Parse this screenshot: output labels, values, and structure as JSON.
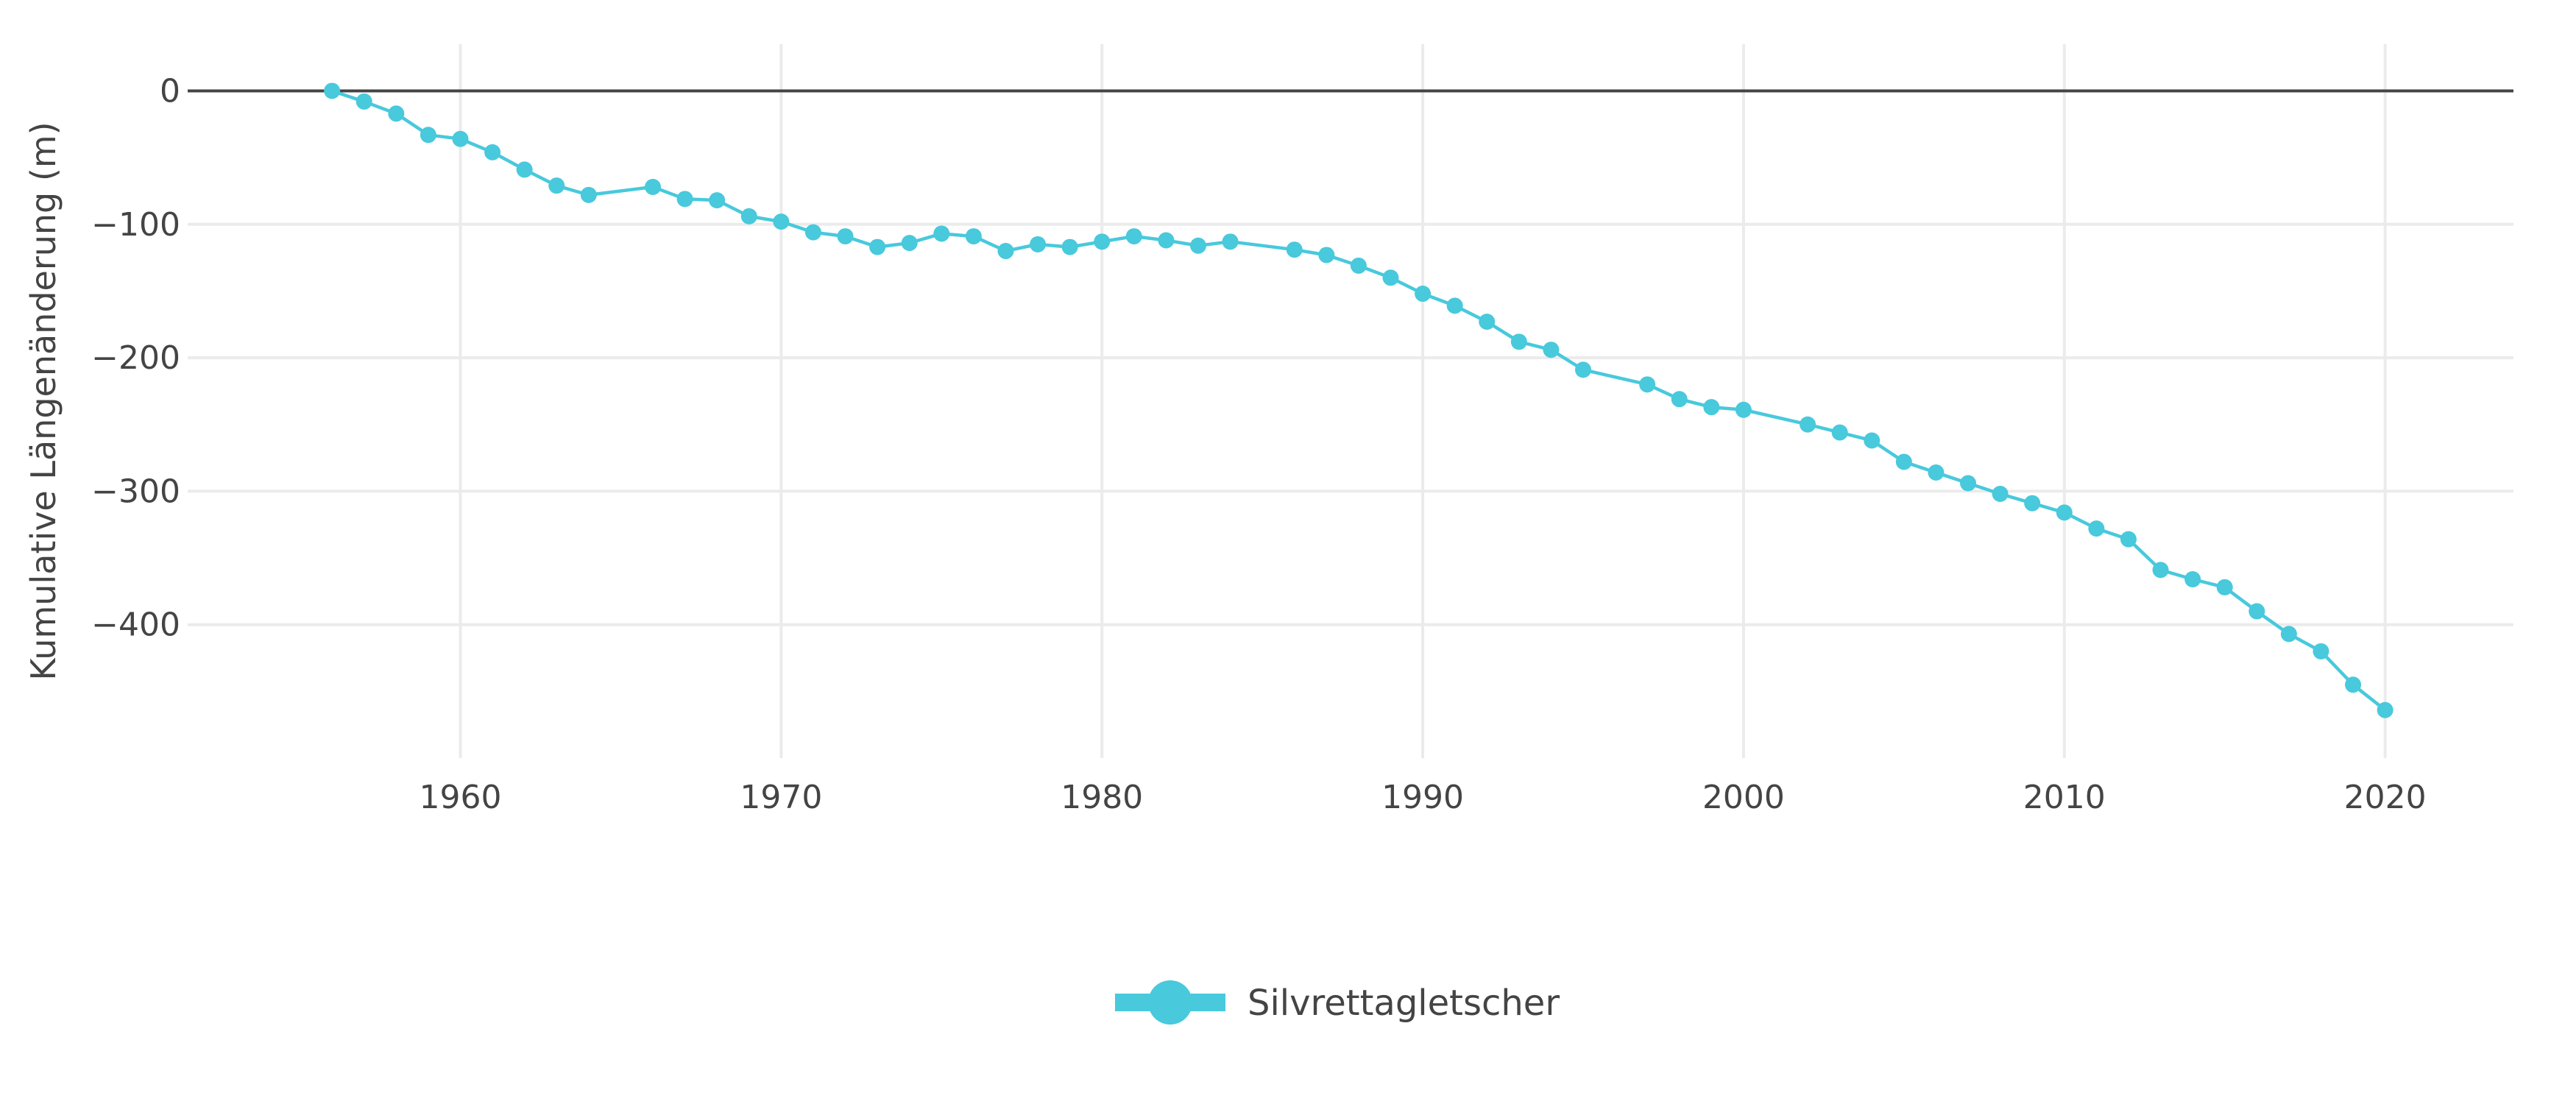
{
  "chart_data": {
    "type": "line",
    "title": "",
    "xlabel": "",
    "ylabel": "Kumulative Längenänderung (m)",
    "xlim": [
      1951.5,
      2024
    ],
    "ylim": [
      -500,
      35
    ],
    "x_ticks": [
      1960,
      1970,
      1980,
      1990,
      2000,
      2010,
      2020
    ],
    "x_tick_labels": [
      "1960",
      "1970",
      "1980",
      "1990",
      "2000",
      "2010",
      "2020"
    ],
    "y_ticks": [
      0,
      -100,
      -200,
      -300,
      -400
    ],
    "y_tick_labels": [
      "0",
      "−100",
      "−200",
      "−300",
      "−400"
    ],
    "grid": true,
    "zero_line": true,
    "legend_position": "bottom-center",
    "series": [
      {
        "name": "Silvrettagletscher",
        "color": "#48C9DC",
        "mode": "lines+markers",
        "x": [
          1956,
          1957,
          1958,
          1959,
          1960,
          1961,
          1962,
          1963,
          1964,
          1966,
          1967,
          1968,
          1969,
          1970,
          1971,
          1972,
          1973,
          1974,
          1975,
          1976,
          1977,
          1978,
          1979,
          1980,
          1981,
          1982,
          1983,
          1984,
          1986,
          1987,
          1988,
          1989,
          1990,
          1991,
          1992,
          1993,
          1994,
          1995,
          1997,
          1998,
          1999,
          2000,
          2002,
          2003,
          2004,
          2005,
          2006,
          2007,
          2008,
          2009,
          2010,
          2011,
          2012,
          2013,
          2014,
          2015,
          2016,
          2017,
          2018,
          2019,
          2020
        ],
        "y": [
          0,
          -8,
          -17,
          -33,
          -36,
          -46,
          -59,
          -71,
          -78,
          -72,
          -81,
          -82,
          -94,
          -98,
          -106,
          -109,
          -117,
          -114,
          -107,
          -109,
          -120,
          -115,
          -117,
          -113,
          -109,
          -112,
          -116,
          -113,
          -119,
          -123,
          -131,
          -140,
          -152,
          -161,
          -173,
          -188,
          -194,
          -209,
          -220,
          -231,
          -237,
          -239,
          -250,
          -256,
          -262,
          -278,
          -286,
          -294,
          -302,
          -309,
          -316,
          -328,
          -336,
          -359,
          -366,
          -372,
          -390,
          -407,
          -420,
          -445,
          -464
        ]
      }
    ]
  }
}
